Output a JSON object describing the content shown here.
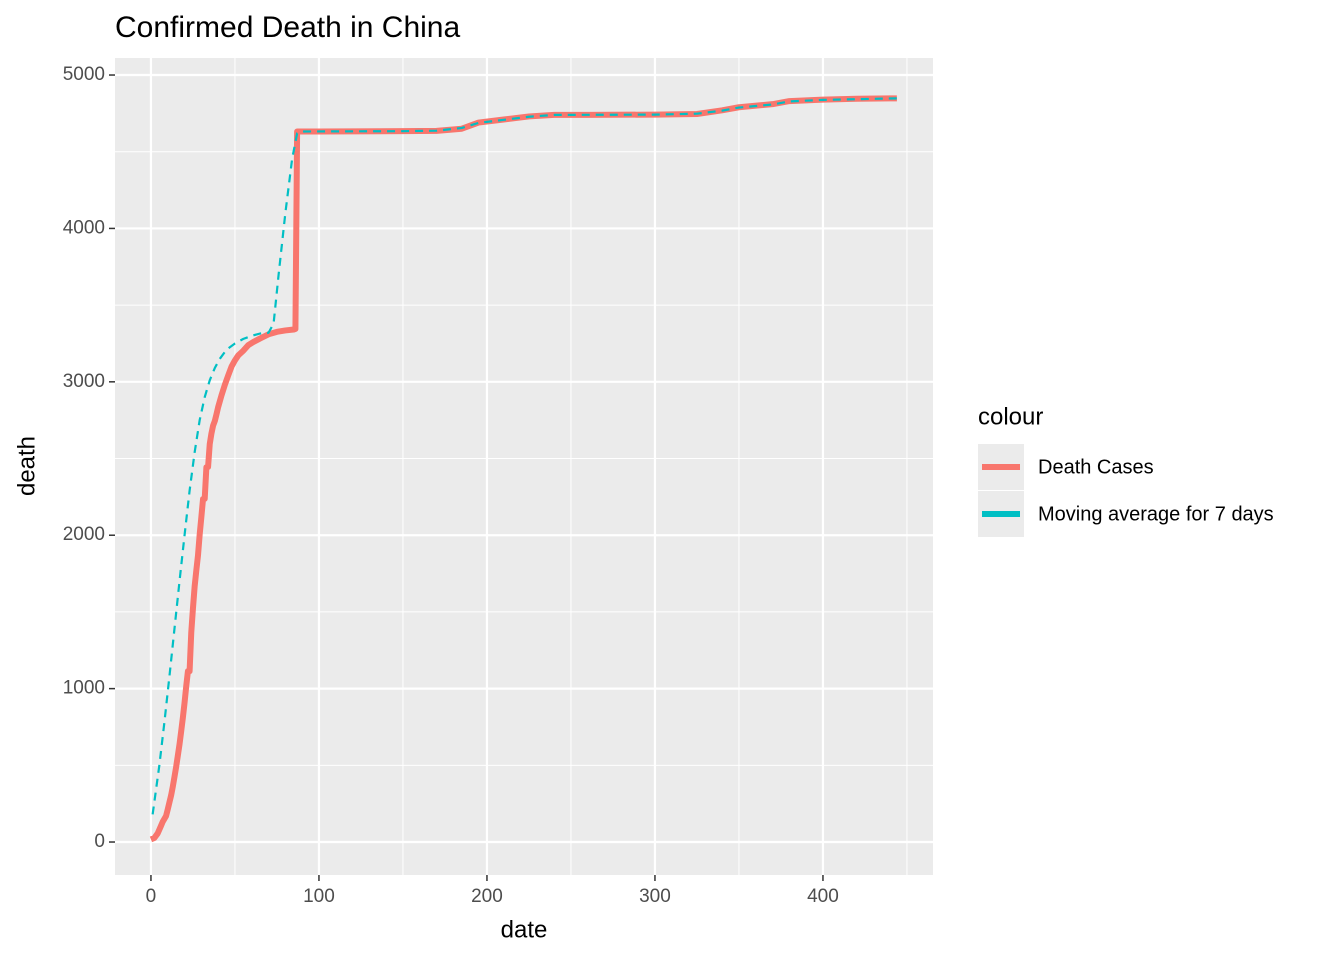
{
  "chart_data": {
    "type": "line",
    "title": "Confirmed Death in China",
    "x_label": "date",
    "y_label": "death",
    "legend_title": "colour",
    "legend_position": "right",
    "grid": true,
    "xlim": [
      -21.4,
      465.5
    ],
    "ylim": [
      -215,
      5111
    ],
    "xticks": [
      0,
      100,
      200,
      300,
      400
    ],
    "yticks": [
      0,
      1000,
      2000,
      3000,
      4000,
      5000
    ],
    "x_minor_ticks": [
      50,
      150,
      250,
      350,
      450
    ],
    "y_minor_ticks": [
      500,
      1500,
      2500,
      3500,
      4500
    ],
    "series": [
      {
        "name": "Death Cases",
        "color": "#F8766D",
        "dash": "solid",
        "x": [
          0,
          2,
          4,
          6,
          7,
          9,
          10,
          11,
          12,
          13,
          14,
          15,
          16,
          17,
          18,
          19,
          20,
          21,
          22,
          23,
          24,
          25,
          26,
          27,
          28,
          29,
          30,
          31,
          32,
          33,
          34,
          35,
          36,
          37,
          38,
          39,
          40,
          42,
          44,
          46,
          48,
          50,
          52,
          55,
          58,
          61,
          65,
          70,
          75,
          80,
          85,
          86,
          87,
          100,
          150,
          170,
          185,
          195,
          210,
          225,
          240,
          260,
          300,
          325,
          340,
          350,
          370,
          380,
          400,
          420,
          444
        ],
        "values": [
          17,
          26,
          56,
          106,
          132,
          170,
          213,
          259,
          304,
          361,
          425,
          490,
          563,
          637,
          722,
          811,
          908,
          1016,
          1113,
          1114,
          1367,
          1523,
          1665,
          1770,
          1868,
          2004,
          2118,
          2236,
          2238,
          2443,
          2445,
          2595,
          2663,
          2715,
          2744,
          2788,
          2835,
          2912,
          2981,
          3042,
          3100,
          3140,
          3173,
          3203,
          3240,
          3260,
          3283,
          3310,
          3326,
          3335,
          3341,
          3345,
          4632,
          4632,
          4634,
          4636,
          4650,
          4690,
          4710,
          4730,
          4740,
          4740,
          4742,
          4746,
          4770,
          4790,
          4810,
          4830,
          4840,
          4845,
          4848
        ]
      },
      {
        "name": "Moving average for 7 days",
        "color": "#00BFC4",
        "dash": "dashed",
        "x": [
          1,
          5,
          8,
          11,
          14,
          17,
          20,
          23,
          26,
          29,
          32,
          35,
          38,
          41,
          45,
          50,
          55,
          60,
          65,
          70,
          73,
          76,
          80,
          84,
          87,
          90,
          150,
          170,
          185,
          195,
          210,
          225,
          240,
          300,
          325,
          340,
          350,
          370,
          380,
          400,
          444
        ],
        "values": [
          180,
          500,
          780,
          1080,
          1390,
          1700,
          2000,
          2290,
          2540,
          2750,
          2900,
          3010,
          3090,
          3150,
          3210,
          3250,
          3280,
          3300,
          3315,
          3320,
          3380,
          3700,
          4100,
          4450,
          4620,
          4632,
          4634,
          4637,
          4655,
          4688,
          4708,
          4728,
          4740,
          4742,
          4748,
          4768,
          4788,
          4808,
          4828,
          4838,
          4848
        ]
      }
    ]
  }
}
